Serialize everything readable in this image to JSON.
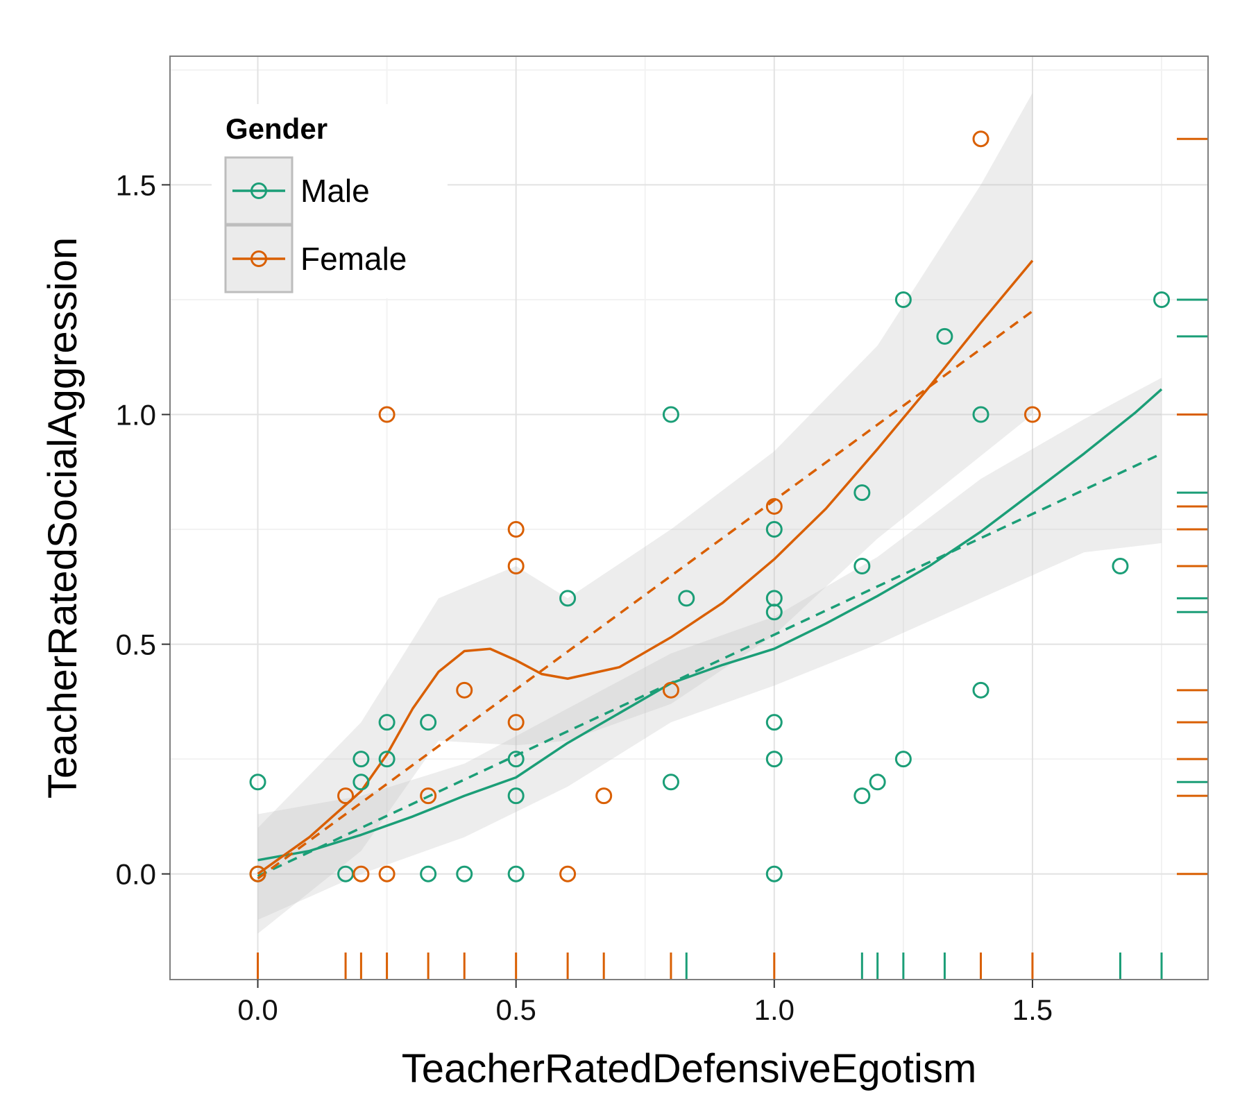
{
  "chart_data": {
    "type": "scatter",
    "xlabel": "TeacherRatedDefensiveEgotism",
    "ylabel": "TeacherRatedSocialAggression",
    "xlim": [
      -0.17,
      1.84
    ],
    "ylim": [
      -0.23,
      1.78
    ],
    "xticks": [
      {
        "value": 0.0,
        "label": "0.0"
      },
      {
        "value": 0.5,
        "label": "0.5"
      },
      {
        "value": 1.0,
        "label": "1.0"
      },
      {
        "value": 1.5,
        "label": "1.5"
      }
    ],
    "yticks": [
      {
        "value": 0.0,
        "label": "0.0"
      },
      {
        "value": 0.5,
        "label": "0.5"
      },
      {
        "value": 1.0,
        "label": "1.0"
      },
      {
        "value": 1.5,
        "label": "1.5"
      }
    ],
    "grid": true,
    "legend": {
      "title": "Gender",
      "placement": "top-left"
    },
    "series": [
      {
        "name": "Male",
        "color": "#1b9e77",
        "points": [
          [
            0,
            0.2
          ],
          [
            0,
            0
          ],
          [
            0.17,
            0
          ],
          [
            0.2,
            0.25
          ],
          [
            0.2,
            0.2
          ],
          [
            0.25,
            0.33
          ],
          [
            0.25,
            0.25
          ],
          [
            0.33,
            0.33
          ],
          [
            0.33,
            0
          ],
          [
            0.4,
            0
          ],
          [
            0.5,
            0.25
          ],
          [
            0.5,
            0.17
          ],
          [
            0.5,
            0
          ],
          [
            0.6,
            0.6
          ],
          [
            0.8,
            1.0
          ],
          [
            0.8,
            0.2
          ],
          [
            0.83,
            0.6
          ],
          [
            1.0,
            0.75
          ],
          [
            1.0,
            0.6
          ],
          [
            1.0,
            0.57
          ],
          [
            1.0,
            0.33
          ],
          [
            1.0,
            0.25
          ],
          [
            1.0,
            0
          ],
          [
            1.17,
            0.83
          ],
          [
            1.17,
            0.67
          ],
          [
            1.17,
            0.17
          ],
          [
            1.2,
            0.2
          ],
          [
            1.25,
            1.25
          ],
          [
            1.25,
            0.25
          ],
          [
            1.33,
            1.17
          ],
          [
            1.4,
            1.0
          ],
          [
            1.4,
            0.4
          ],
          [
            1.67,
            0.67
          ],
          [
            1.75,
            1.25
          ]
        ],
        "loess": [
          [
            0,
            0.03
          ],
          [
            0.1,
            0.05
          ],
          [
            0.2,
            0.085
          ],
          [
            0.3,
            0.125
          ],
          [
            0.4,
            0.17
          ],
          [
            0.5,
            0.21
          ],
          [
            0.6,
            0.285
          ],
          [
            0.7,
            0.35
          ],
          [
            0.8,
            0.415
          ],
          [
            0.9,
            0.455
          ],
          [
            1.0,
            0.49
          ],
          [
            1.1,
            0.545
          ],
          [
            1.2,
            0.605
          ],
          [
            1.3,
            0.67
          ],
          [
            1.4,
            0.745
          ],
          [
            1.5,
            0.83
          ],
          [
            1.6,
            0.915
          ],
          [
            1.7,
            1.005
          ],
          [
            1.75,
            1.055
          ]
        ],
        "linear": [
          [
            0,
            -0.005
          ],
          [
            1.75,
            0.915
          ]
        ],
        "band": {
          "upper": [
            [
              0,
              0.13
            ],
            [
              0.2,
              0.17
            ],
            [
              0.4,
              0.24
            ],
            [
              0.6,
              0.36
            ],
            [
              0.8,
              0.48
            ],
            [
              1.0,
              0.56
            ],
            [
              1.2,
              0.69
            ],
            [
              1.4,
              0.86
            ],
            [
              1.6,
              0.99
            ],
            [
              1.75,
              1.08
            ]
          ],
          "lower": [
            [
              0,
              -0.1
            ],
            [
              0.2,
              0.0
            ],
            [
              0.4,
              0.08
            ],
            [
              0.6,
              0.19
            ],
            [
              0.8,
              0.33
            ],
            [
              1.0,
              0.41
            ],
            [
              1.2,
              0.5
            ],
            [
              1.4,
              0.6
            ],
            [
              1.6,
              0.7
            ],
            [
              1.75,
              0.72
            ]
          ]
        },
        "rug_x": [
          0.83,
          1.17,
          1.2,
          1.25,
          1.33,
          1.67,
          1.75
        ],
        "rug_y": [
          1.25,
          1.17,
          0.83,
          0.6,
          0.57,
          0.2
        ]
      },
      {
        "name": "Female",
        "color": "#d95f02",
        "points": [
          [
            0,
            0
          ],
          [
            0.17,
            0.17
          ],
          [
            0.2,
            0
          ],
          [
            0.25,
            1.0
          ],
          [
            0.25,
            0
          ],
          [
            0.33,
            0.17
          ],
          [
            0.4,
            0.4
          ],
          [
            0.5,
            0.75
          ],
          [
            0.5,
            0.67
          ],
          [
            0.5,
            0.33
          ],
          [
            0.6,
            0
          ],
          [
            0.67,
            0.17
          ],
          [
            0.8,
            0.4
          ],
          [
            1.0,
            0.8
          ],
          [
            1.4,
            1.6
          ],
          [
            1.5,
            1.0
          ]
        ],
        "loess": [
          [
            0,
            0.0
          ],
          [
            0.05,
            0.04
          ],
          [
            0.1,
            0.08
          ],
          [
            0.15,
            0.13
          ],
          [
            0.2,
            0.18
          ],
          [
            0.25,
            0.26
          ],
          [
            0.3,
            0.36
          ],
          [
            0.35,
            0.44
          ],
          [
            0.4,
            0.485
          ],
          [
            0.45,
            0.49
          ],
          [
            0.5,
            0.465
          ],
          [
            0.55,
            0.435
          ],
          [
            0.6,
            0.425
          ],
          [
            0.7,
            0.45
          ],
          [
            0.8,
            0.515
          ],
          [
            0.9,
            0.59
          ],
          [
            1.0,
            0.685
          ],
          [
            1.1,
            0.795
          ],
          [
            1.2,
            0.925
          ],
          [
            1.3,
            1.06
          ],
          [
            1.4,
            1.2
          ],
          [
            1.5,
            1.335
          ]
        ],
        "linear": [
          [
            0,
            -0.01
          ],
          [
            1.5,
            1.225
          ]
        ],
        "band": {
          "upper": [
            [
              0,
              0.1
            ],
            [
              0.2,
              0.33
            ],
            [
              0.35,
              0.6
            ],
            [
              0.5,
              0.67
            ],
            [
              0.6,
              0.6
            ],
            [
              0.8,
              0.75
            ],
            [
              1.0,
              0.92
            ],
            [
              1.2,
              1.15
            ],
            [
              1.4,
              1.5
            ],
            [
              1.5,
              1.7
            ]
          ],
          "lower": [
            [
              0,
              -0.13
            ],
            [
              0.2,
              0.05
            ],
            [
              0.35,
              0.29
            ],
            [
              0.5,
              0.28
            ],
            [
              0.6,
              0.29
            ],
            [
              0.8,
              0.37
            ],
            [
              1.0,
              0.52
            ],
            [
              1.2,
              0.73
            ],
            [
              1.4,
              0.91
            ],
            [
              1.5,
              1.0
            ]
          ]
        },
        "rug_x": [
          0,
          0.17,
          0.2,
          0.25,
          0.33,
          0.4,
          0.5,
          0.6,
          0.67,
          0.8,
          1.0,
          1.4,
          1.5
        ],
        "rug_y": [
          1.6,
          1.0,
          0.8,
          0.75,
          0.67,
          0.4,
          0.33,
          0.25,
          0.17,
          0
        ]
      }
    ]
  }
}
